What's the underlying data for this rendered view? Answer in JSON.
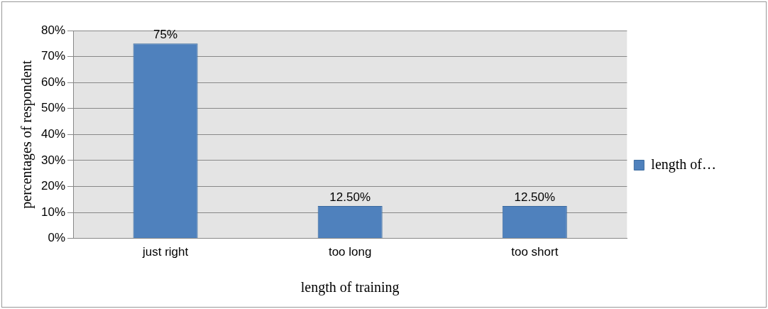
{
  "chart_data": {
    "type": "bar",
    "xlabel": "length of training",
    "ylabel": "percentages of respondent",
    "categories": [
      "just right",
      "too long",
      "too short"
    ],
    "series": [
      {
        "name": "length of…",
        "color": "#4f81bd",
        "values": [
          75,
          12.5,
          12.5
        ],
        "value_labels": [
          "75%",
          "12.50%",
          "12.50%"
        ]
      }
    ],
    "ylim": [
      0,
      80
    ],
    "yticks": [
      {
        "value": 0,
        "label": "0%"
      },
      {
        "value": 10,
        "label": "10%"
      },
      {
        "value": 20,
        "label": "20%"
      },
      {
        "value": 30,
        "label": "30%"
      },
      {
        "value": 40,
        "label": "40%"
      },
      {
        "value": 50,
        "label": "50%"
      },
      {
        "value": 60,
        "label": "60%"
      },
      {
        "value": 70,
        "label": "70%"
      },
      {
        "value": 80,
        "label": "80%"
      }
    ],
    "grid": "y",
    "legend": "right"
  }
}
